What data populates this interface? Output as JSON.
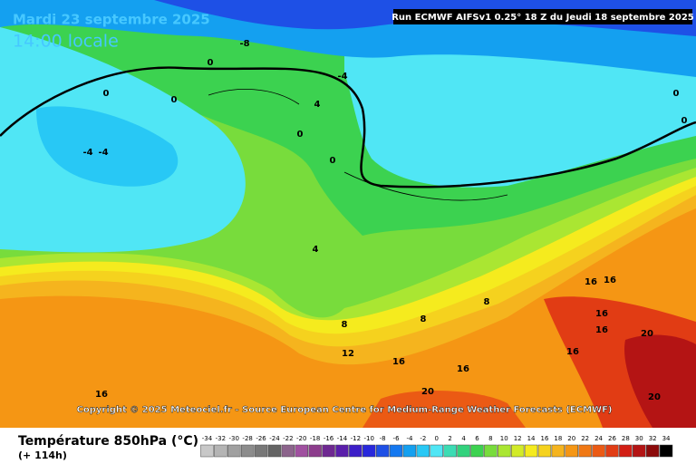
{
  "header": {
    "title": "Mardi 23 septembre 2025",
    "time": "14:00 locale",
    "run": "Run ECMWF AIFSv1 0.25° 18 Z du Jeudi 18 septembre 2025"
  },
  "map": {
    "contour_labels": [
      -8,
      -4,
      0,
      0,
      0,
      4,
      0,
      -4,
      -4,
      0,
      0,
      0,
      4,
      8,
      8,
      8,
      12,
      16,
      16,
      16,
      16,
      16,
      16,
      16,
      20,
      16,
      20,
      20
    ],
    "copyright": "Copyright © 2025 Meteociel.fr - Source European Centre for Medium-Range Weather Forecasts (ECMWF)"
  },
  "legend": {
    "title": "Température 850hPa (°C)",
    "lead_time": "(+ 114h)",
    "ticks": [
      -34,
      -32,
      -30,
      -28,
      -26,
      -24,
      -22,
      -20,
      -18,
      -16,
      -14,
      -12,
      -10,
      -8,
      -6,
      -4,
      -2,
      0,
      2,
      4,
      6,
      8,
      10,
      12,
      14,
      16,
      18,
      20,
      22,
      24,
      26,
      28,
      30,
      32,
      34
    ],
    "colors": [
      "#c8c8c8",
      "#b4b4b4",
      "#a0a0a0",
      "#8c8c8c",
      "#787878",
      "#646464",
      "#8c648c",
      "#a050a0",
      "#8c3c8c",
      "#6e2891",
      "#5a1eaa",
      "#3c1ec8",
      "#2828dc",
      "#1e50e6",
      "#1478f0",
      "#14a0f0",
      "#28c8f5",
      "#50e6f5",
      "#3cdcb4",
      "#32d27d",
      "#3cd250",
      "#78dc3c",
      "#aae632",
      "#d2eb28",
      "#f5eb1e",
      "#f5d21e",
      "#f5b41e",
      "#f59614",
      "#f07814",
      "#eb5a14",
      "#e13c14",
      "#d21e14",
      "#b41414",
      "#8c0a0a",
      "#000000"
    ]
  }
}
